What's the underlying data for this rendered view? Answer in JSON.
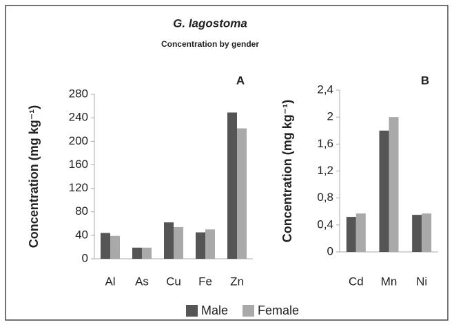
{
  "figure": {
    "title": "G. lagostoma",
    "subtitle": "Concentration by gender"
  },
  "chart_data": [
    {
      "type": "bar",
      "annotation": "A",
      "ylabel": "Concentration (mg kg⁻¹)",
      "categories": [
        "Al",
        "As",
        "Cu",
        "Fe",
        "Zn"
      ],
      "series": [
        {
          "name": "Male",
          "color": "#555555",
          "values": [
            44,
            19,
            62,
            45,
            249
          ]
        },
        {
          "name": "Female",
          "color": "#a9a9a9",
          "values": [
            39,
            19,
            54,
            50,
            222
          ]
        }
      ],
      "ylim": [
        0,
        280
      ],
      "yticks": [
        0,
        40,
        80,
        120,
        160,
        200,
        240,
        280
      ]
    },
    {
      "type": "bar",
      "annotation": "B",
      "ylabel": "Concentration (mg kg⁻¹)",
      "categories": [
        "Cd",
        "Mn",
        "Ni"
      ],
      "series": [
        {
          "color": "#555555",
          "values": [
            0.52,
            1.8,
            0.55
          ]
        },
        {
          "color": "#a9a9a9",
          "values": [
            0.57,
            2.0,
            0.57
          ]
        }
      ],
      "ylim": [
        0,
        2.4
      ],
      "yticks": [
        0,
        {
          "value": 0.4,
          "label": "0,4"
        },
        {
          "value": 0.8,
          "label": "0,8"
        },
        {
          "value": 1.2,
          "label": "1,2"
        },
        {
          "value": 1.6,
          "label": "1,6"
        },
        2,
        {
          "value": 2.4,
          "label": "2,4"
        }
      ]
    }
  ]
}
